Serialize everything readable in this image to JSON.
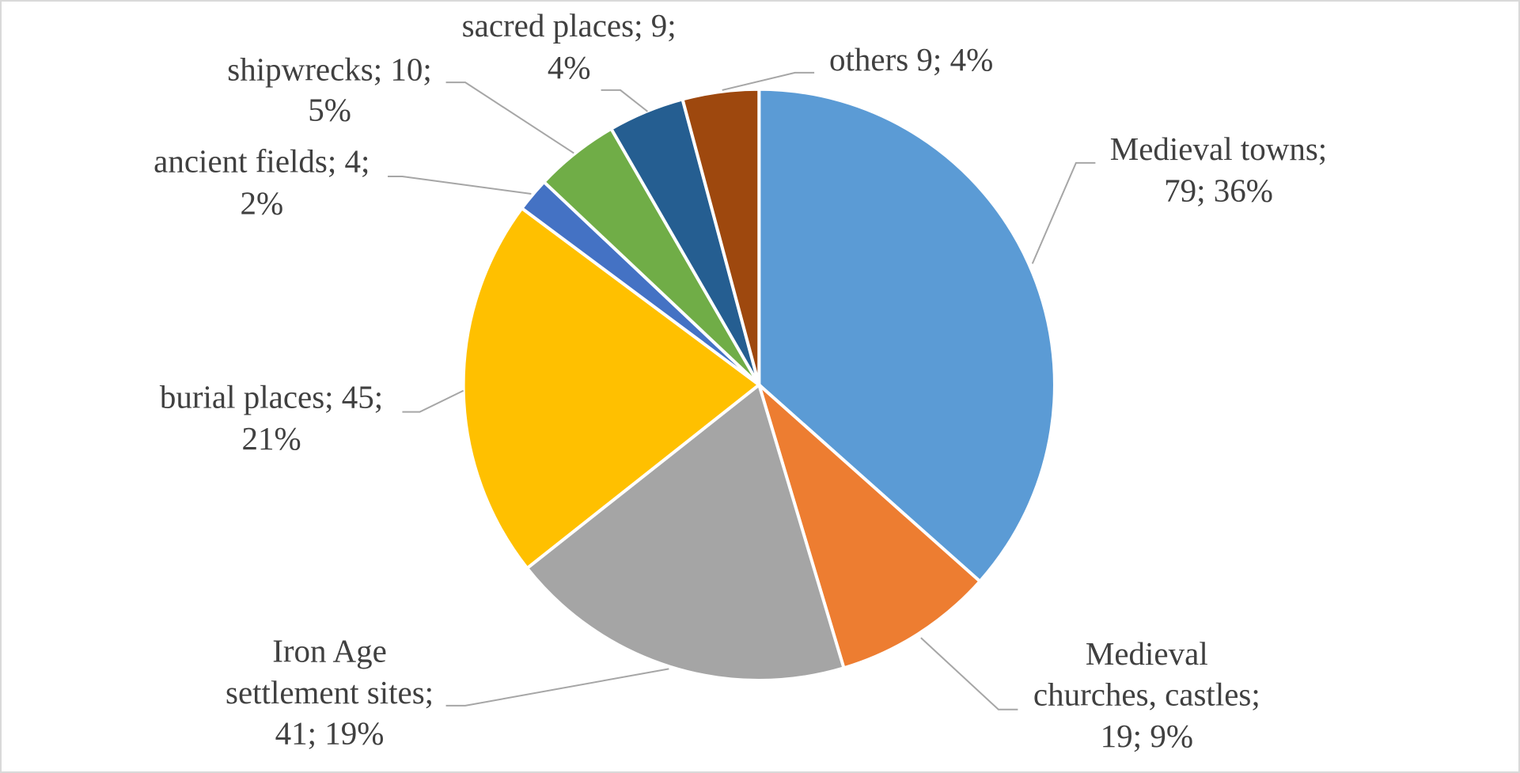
{
  "chart_data": {
    "type": "pie",
    "categories": [
      "Medieval towns",
      "Medieval churches, castles",
      "Iron Age settlement sites",
      "burial places",
      "ancient fields",
      "shipwrecks",
      "sacred places",
      "others"
    ],
    "values": [
      79,
      19,
      41,
      45,
      4,
      10,
      9,
      9
    ],
    "value_labels": [
      [
        "Medieval towns;",
        "79; 36%"
      ],
      [
        "Medieval",
        "churches, castles;",
        "19; 9%"
      ],
      [
        "Iron Age",
        "settlement sites;",
        "41; 19%"
      ],
      [
        "burial places; 45;",
        "21%"
      ],
      [
        "ancient fields; 4;",
        "2%"
      ],
      [
        "shipwrecks; 10;",
        "5%"
      ],
      [
        "sacred places; 9;",
        "4%"
      ],
      [
        "others 9; 4%"
      ]
    ],
    "colors": [
      "#5b9bd5",
      "#ed7d31",
      "#a5a5a5",
      "#ffc000",
      "#4472c4",
      "#70ad47",
      "#255e91",
      "#9e480e"
    ]
  }
}
